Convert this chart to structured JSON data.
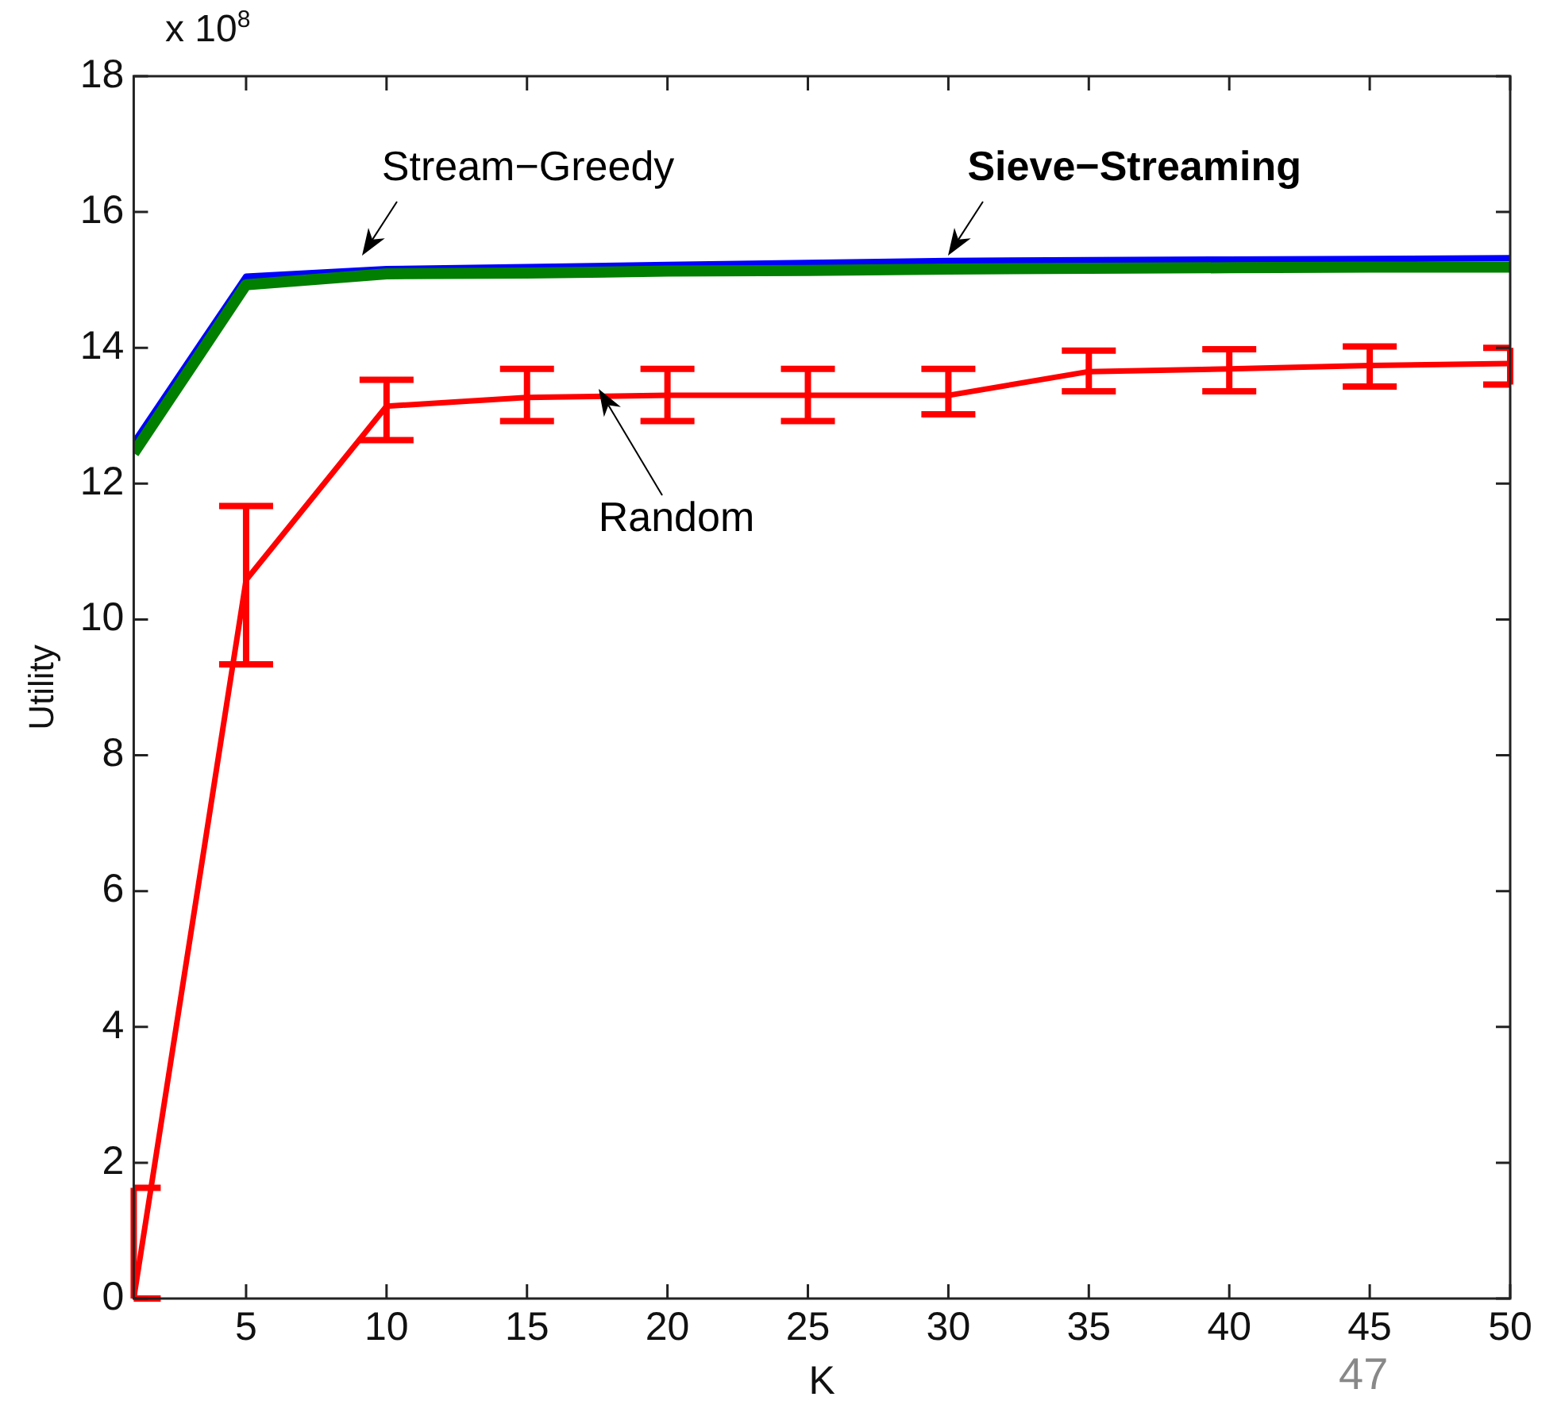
{
  "chart_data": {
    "type": "line",
    "xlabel": "K",
    "ylabel": "Utility",
    "x": [
      1,
      5,
      10,
      15,
      20,
      25,
      30,
      35,
      40,
      45,
      50
    ],
    "xlim": [
      1,
      50
    ],
    "xticks": [
      5,
      10,
      15,
      20,
      25,
      30,
      35,
      40,
      45,
      50
    ],
    "ylim": [
      0,
      18
    ],
    "yticks": [
      0,
      2,
      4,
      6,
      8,
      10,
      12,
      14,
      16,
      18
    ],
    "grid": false,
    "legend": false,
    "marker": "none",
    "line_style": "solid",
    "series": [
      {
        "name": "Stream−Greedy",
        "color": "#0000ff",
        "values": [
          12.6,
          15.05,
          15.16,
          15.19,
          15.22,
          15.25,
          15.28,
          15.29,
          15.3,
          15.31,
          15.32
        ]
      },
      {
        "name": "Sieve−Streaming",
        "color": "#007f00",
        "values": [
          12.45,
          14.93,
          15.09,
          15.1,
          15.13,
          15.14,
          15.16,
          15.17,
          15.18,
          15.19,
          15.19
        ]
      },
      {
        "name": "Random",
        "color": "#ff0000",
        "values": [
          0,
          10.58,
          13.14,
          13.27,
          13.3,
          13.3,
          13.3,
          13.65,
          13.69,
          13.74,
          13.77
        ],
        "errors": [
          [
            0,
            1.63
          ],
          [
            9.34,
            11.67
          ],
          [
            12.64,
            13.53
          ],
          [
            12.92,
            13.69
          ],
          [
            12.92,
            13.69
          ],
          [
            12.92,
            13.69
          ],
          [
            13.02,
            13.69
          ],
          [
            13.36,
            13.96
          ],
          [
            13.36,
            13.98
          ],
          [
            13.43,
            14.02
          ],
          [
            13.46,
            14.0
          ]
        ]
      }
    ],
    "annotations": [
      "x 10$^{8}$",
      "47"
    ]
  }
}
